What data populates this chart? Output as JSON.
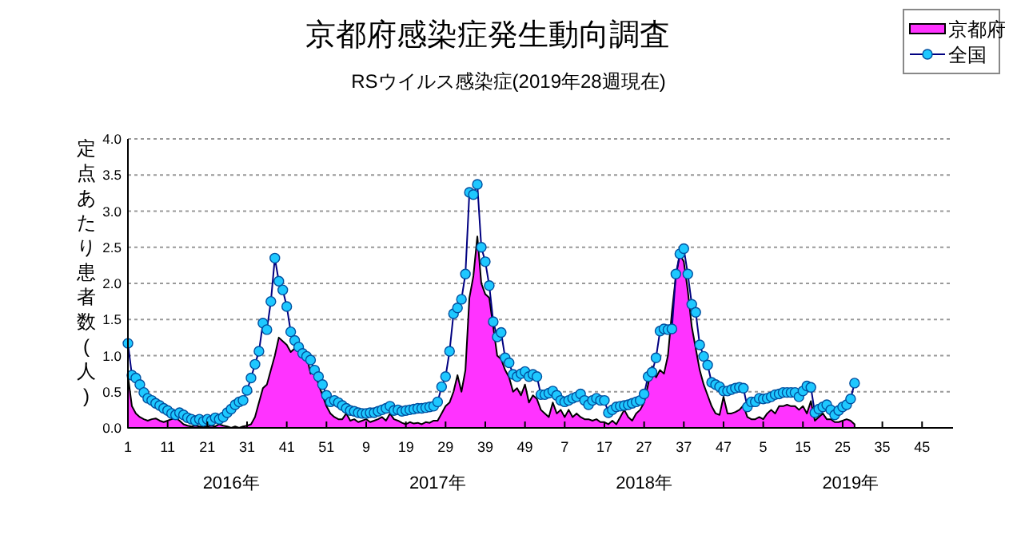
{
  "chart_data": {
    "type": "area",
    "title": "京都府感染症発生動向調査",
    "subtitle": "RSウイルス感染症(2019年28週現在)",
    "ylabel": "定点あたり患者数(人)",
    "annotations": [
      "2016年",
      "2017年",
      "2018年",
      "2019年"
    ],
    "categories": [
      "1",
      null,
      null,
      null,
      null,
      null,
      null,
      null,
      null,
      null,
      "11",
      null,
      null,
      null,
      null,
      null,
      null,
      null,
      null,
      null,
      "21",
      null,
      null,
      null,
      null,
      null,
      null,
      null,
      null,
      null,
      "31",
      null,
      null,
      null,
      null,
      null,
      null,
      null,
      null,
      null,
      "41",
      null,
      null,
      null,
      null,
      null,
      null,
      null,
      null,
      null,
      "51",
      null,
      null,
      null,
      null,
      null,
      null,
      null,
      null,
      null,
      "9",
      null,
      null,
      null,
      null,
      null,
      null,
      null,
      null,
      null,
      "19",
      null,
      null,
      null,
      null,
      null,
      null,
      null,
      null,
      null,
      "29",
      null,
      null,
      null,
      null,
      null,
      null,
      null,
      null,
      null,
      "39",
      null,
      null,
      null,
      null,
      null,
      null,
      null,
      null,
      null,
      "49",
      null,
      null,
      null,
      null,
      null,
      null,
      null,
      null,
      null,
      "7",
      null,
      null,
      null,
      null,
      null,
      null,
      null,
      null,
      null,
      "17",
      null,
      null,
      null,
      null,
      null,
      null,
      null,
      null,
      null,
      "27",
      null,
      null,
      null,
      null,
      null,
      null,
      null,
      null,
      null,
      "37",
      null,
      null,
      null,
      null,
      null,
      null,
      null,
      null,
      null,
      "47",
      null,
      null,
      null,
      null,
      null,
      null,
      null,
      null,
      null,
      "5",
      null,
      null,
      null,
      null,
      null,
      null,
      null,
      null,
      null,
      "15",
      null,
      null,
      null,
      null,
      null,
      null,
      null,
      null,
      null,
      "25",
      null,
      null,
      null,
      null,
      null,
      null,
      null,
      null,
      null,
      "35",
      null,
      null,
      null,
      null,
      null,
      null,
      null,
      null,
      null,
      "45",
      null,
      null,
      null,
      null,
      null,
      null,
      null
    ],
    "series": [
      {
        "name": "京都府",
        "color": "#ff33ff",
        "values": [
          0.72,
          0.3,
          0.2,
          0.15,
          0.12,
          0.1,
          0.12,
          0.13,
          0.1,
          0.08,
          0.1,
          0.12,
          0.14,
          0.1,
          0.05,
          0.03,
          0.02,
          0.03,
          0.02,
          0.01,
          0.02,
          0.03,
          0.02,
          0.05,
          0.03,
          0.02,
          0,
          0.02,
          0,
          0.02,
          0.03,
          0.05,
          0.15,
          0.35,
          0.55,
          0.6,
          0.8,
          1.0,
          1.25,
          1.2,
          1.15,
          1.05,
          1.1,
          1.15,
          1.1,
          1.0,
          0.75,
          0.8,
          0.6,
          0.45,
          0.3,
          0.2,
          0.15,
          0.12,
          0.12,
          0.2,
          0.1,
          0.12,
          0.08,
          0.1,
          0.12,
          0.08,
          0.1,
          0.12,
          0.15,
          0.1,
          0.2,
          0.12,
          0.1,
          0.07,
          0.05,
          0.08,
          0.06,
          0.07,
          0.05,
          0.08,
          0.07,
          0.1,
          0.1,
          0.2,
          0.3,
          0.35,
          0.5,
          0.73,
          0.5,
          0.8,
          1.8,
          2.1,
          2.65,
          2.0,
          1.85,
          1.8,
          1.4,
          1.0,
          0.95,
          0.8,
          0.7,
          0.5,
          0.55,
          0.45,
          0.6,
          0.35,
          0.45,
          0.4,
          0.25,
          0.2,
          0.15,
          0.35,
          0.2,
          0.25,
          0.15,
          0.25,
          0.15,
          0.2,
          0.15,
          0.12,
          0.12,
          0.1,
          0.12,
          0.08,
          0.08,
          0.05,
          0.1,
          0.05,
          0.15,
          0.25,
          0.15,
          0.1,
          0.2,
          0.25,
          0.35,
          0.6,
          0.85,
          0.7,
          0.8,
          0.75,
          1.0,
          1.6,
          2.1,
          2.4,
          2.3,
          1.9,
          1.4,
          1.1,
          0.8,
          0.6,
          0.45,
          0.3,
          0.2,
          0.18,
          0.43,
          0.2,
          0.2,
          0.22,
          0.25,
          0.31,
          0.15,
          0.12,
          0.12,
          0.15,
          0.12,
          0.2,
          0.25,
          0.2,
          0.3,
          0.3,
          0.32,
          0.3,
          0.3,
          0.25,
          0.3,
          0.2,
          0.37,
          0.1,
          0.15,
          0.2,
          0.12,
          0.12,
          0.08,
          0.08,
          0.1,
          0.12,
          0.1,
          0.05,
          null,
          null,
          null,
          null,
          null,
          null,
          null,
          null,
          null,
          null,
          null,
          null,
          null,
          null,
          null,
          null,
          null,
          null,
          null,
          null,
          null,
          null,
          null,
          null
        ]
      },
      {
        "name": "全国",
        "type": "line",
        "color": "#1ec8ff",
        "marker": "circle",
        "values": [
          1.17,
          0.73,
          0.69,
          0.6,
          0.49,
          0.41,
          0.38,
          0.34,
          0.31,
          0.27,
          0.24,
          0.2,
          0.18,
          0.21,
          0.18,
          0.14,
          0.12,
          0.1,
          0.12,
          0.09,
          0.12,
          0.1,
          0.14,
          0.12,
          0.15,
          0.21,
          0.26,
          0.32,
          0.36,
          0.38,
          0.52,
          0.69,
          0.88,
          1.06,
          1.45,
          1.36,
          1.75,
          2.35,
          2.03,
          1.91,
          1.68,
          1.33,
          1.21,
          1.12,
          1.03,
          0.99,
          0.94,
          0.8,
          0.71,
          0.6,
          0.45,
          0.36,
          0.38,
          0.35,
          0.31,
          0.27,
          0.24,
          0.23,
          0.21,
          0.2,
          0.2,
          0.21,
          0.21,
          0.23,
          0.25,
          0.27,
          0.3,
          0.24,
          0.25,
          0.23,
          0.24,
          0.25,
          0.26,
          0.27,
          0.27,
          0.28,
          0.29,
          0.3,
          0.36,
          0.57,
          0.71,
          1.06,
          1.58,
          1.66,
          1.78,
          2.13,
          3.26,
          3.23,
          3.37,
          2.5,
          2.3,
          1.97,
          1.47,
          1.26,
          1.32,
          0.97,
          0.9,
          0.74,
          0.71,
          0.75,
          0.78,
          0.71,
          0.74,
          0.71,
          0.46,
          0.46,
          0.48,
          0.51,
          0.45,
          0.38,
          0.36,
          0.38,
          0.41,
          0.43,
          0.47,
          0.38,
          0.32,
          0.38,
          0.41,
          0.38,
          0.38,
          0.21,
          0.25,
          0.29,
          0.3,
          0.31,
          0.32,
          0.34,
          0.36,
          0.38,
          0.47,
          0.71,
          0.77,
          0.97,
          1.34,
          1.37,
          1.36,
          1.37,
          2.13,
          2.41,
          2.48,
          2.13,
          1.71,
          1.6,
          1.15,
          0.99,
          0.87,
          0.63,
          0.6,
          0.57,
          0.51,
          0.51,
          0.53,
          0.55,
          0.56,
          0.55,
          0.29,
          0.36,
          0.36,
          0.41,
          0.4,
          0.41,
          0.43,
          0.46,
          0.47,
          0.49,
          0.49,
          0.49,
          0.49,
          0.43,
          0.51,
          0.58,
          0.56,
          0.21,
          0.26,
          0.29,
          0.32,
          0.25,
          0.18,
          0.24,
          0.29,
          0.32,
          0.4,
          0.62,
          null,
          null,
          null,
          null,
          null,
          null,
          null,
          null,
          null,
          null,
          null,
          null,
          null,
          null,
          null,
          null,
          null,
          null,
          null,
          null,
          null,
          null,
          null,
          null
        ]
      }
    ],
    "ylim": [
      0,
      4
    ],
    "yticks": [
      {
        "value": 0,
        "label": "0.0"
      },
      {
        "value": 0.5,
        "label": "0.5"
      },
      {
        "value": 1,
        "label": "1.0"
      },
      {
        "value": 1.5,
        "label": "1.5"
      },
      {
        "value": 2,
        "label": "2.0"
      },
      {
        "value": 2.5,
        "label": "2.5"
      },
      {
        "value": 3,
        "label": "3.0"
      },
      {
        "value": 3.5,
        "label": "3.5"
      },
      {
        "value": 4,
        "label": "4.0"
      }
    ],
    "grid": "y",
    "legend": "top right"
  }
}
